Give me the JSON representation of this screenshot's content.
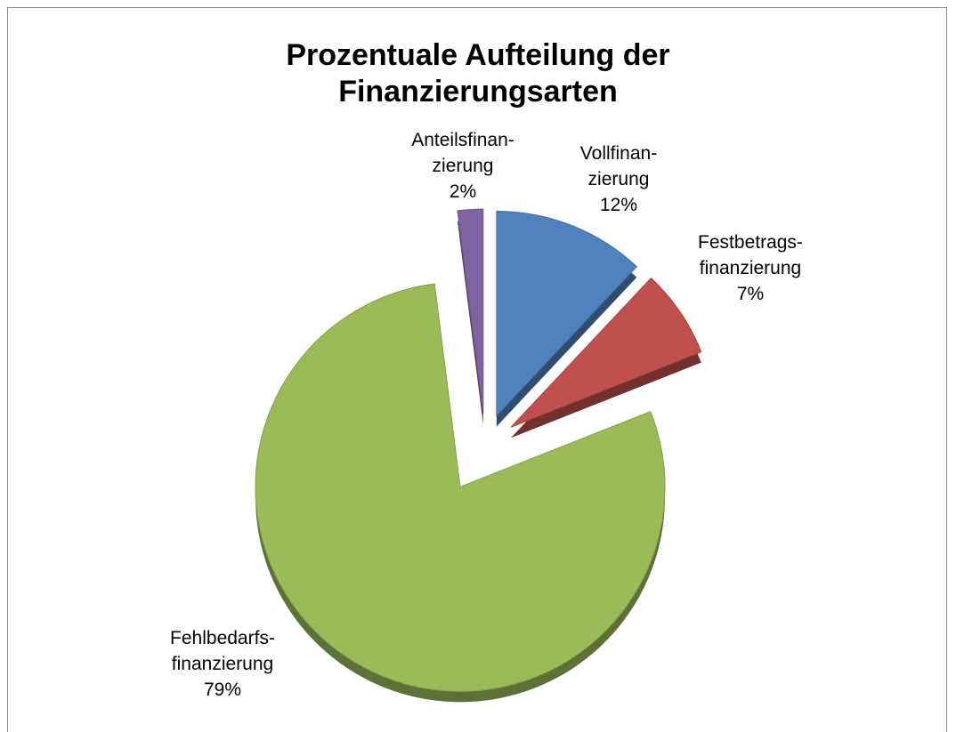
{
  "chart_data": {
    "type": "pie",
    "title": "Prozentuale Aufteilung der Finanzierungsarten",
    "categories": [
      "Vollfinan-\nzierung",
      "Festbetrags-\nfinanzierung",
      "Fehlbedarfs-\nfinanzierung",
      "Anteilsfinan-\nzierung"
    ],
    "values": [
      12,
      7,
      79,
      2
    ],
    "value_labels": [
      "12%",
      "7%",
      "79%",
      "2%"
    ],
    "colors": [
      "#4f81bd",
      "#c0504d",
      "#9bbb59",
      "#8064a2"
    ]
  }
}
